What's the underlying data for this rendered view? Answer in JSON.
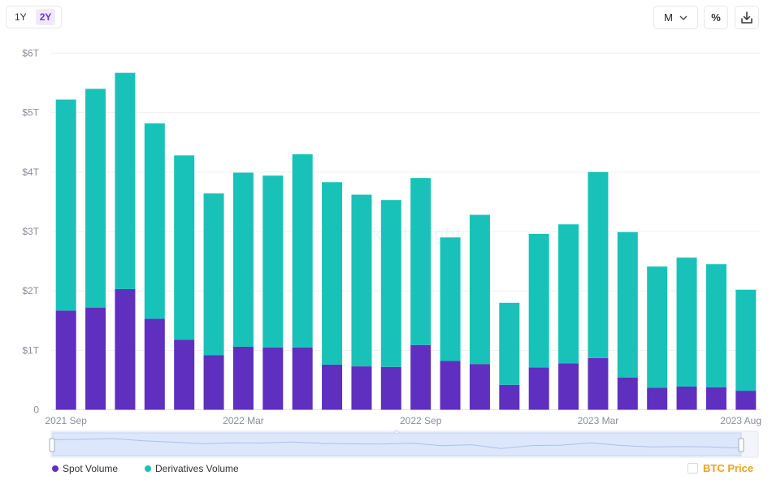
{
  "toolbar": {
    "ranges": [
      "1Y",
      "2Y"
    ],
    "active_range": "2Y",
    "interval": "M",
    "percent_label": "%"
  },
  "legend": {
    "spot": "Spot Volume",
    "derivatives": "Derivatives Volume",
    "btc": "BTC Price"
  },
  "colors": {
    "spot": "#5f30bf",
    "derivatives": "#19c2b8",
    "btc": "#f3a019",
    "active": "#6d37d4"
  },
  "watermark": "TokenInsight",
  "chart_data": {
    "type": "bar",
    "stacked": true,
    "title": "",
    "xlabel": "",
    "ylabel": "",
    "ylim": [
      0,
      6
    ],
    "y_unit": "T",
    "y_ticks": [
      "0",
      "$1T",
      "$2T",
      "$3T",
      "$4T",
      "$5T",
      "$6T"
    ],
    "x_tick_labels": [
      {
        "index": 0,
        "label": "2021 Sep"
      },
      {
        "index": 6,
        "label": "2022 Mar"
      },
      {
        "index": 12,
        "label": "2022 Sep"
      },
      {
        "index": 18,
        "label": "2023 Mar"
      },
      {
        "index": 23,
        "label": "2023 Aug"
      }
    ],
    "categories": [
      "2021 Sep",
      "2021 Oct",
      "2021 Nov",
      "2021 Dec",
      "2022 Jan",
      "2022 Feb",
      "2022 Mar",
      "2022 Apr",
      "2022 May",
      "2022 Jun",
      "2022 Jul",
      "2022 Aug",
      "2022 Sep",
      "2022 Oct",
      "2022 Nov",
      "2022 Dec",
      "2023 Jan",
      "2023 Feb",
      "2023 Mar",
      "2023 Apr",
      "2023 May",
      "2023 Jun",
      "2023 Jul",
      "2023 Aug"
    ],
    "series": [
      {
        "name": "Spot Volume",
        "values": [
          1.67,
          1.72,
          2.03,
          1.53,
          1.18,
          0.92,
          1.06,
          1.05,
          1.05,
          0.76,
          0.73,
          0.72,
          1.09,
          0.82,
          0.77,
          0.42,
          0.71,
          0.78,
          0.87,
          0.54,
          0.37,
          0.39,
          0.38,
          0.32
        ]
      },
      {
        "name": "Derivatives Volume",
        "values": [
          3.55,
          3.68,
          3.64,
          3.29,
          3.1,
          2.72,
          2.93,
          2.89,
          3.25,
          3.07,
          2.89,
          2.81,
          2.81,
          2.08,
          2.51,
          1.38,
          2.25,
          2.34,
          3.13,
          2.45,
          2.04,
          2.17,
          2.07,
          1.7
        ]
      }
    ]
  }
}
